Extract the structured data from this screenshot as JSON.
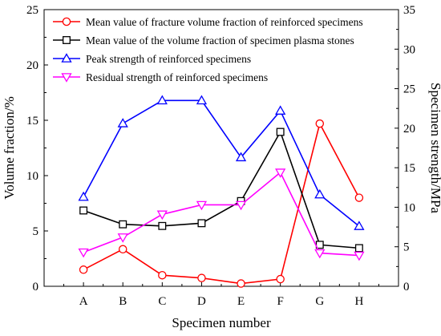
{
  "chart_data": {
    "type": "line",
    "categories": [
      "A",
      "B",
      "C",
      "D",
      "E",
      "F",
      "G",
      "H"
    ],
    "xlabel": "Specimen number",
    "ylabel_left": "Volume fraction/%",
    "ylabel_right": "Specimen strength/MPa",
    "ylim_left": [
      0,
      25
    ],
    "ylim_right": [
      0,
      35
    ],
    "yticks_left": [
      "0",
      "5",
      "10",
      "15",
      "20",
      "25"
    ],
    "yticks_right": [
      "0",
      "5",
      "10",
      "15",
      "20",
      "25",
      "30",
      "35"
    ],
    "grid": false,
    "legend_placement": "top-right",
    "series": [
      {
        "name": "Mean value of fracture volume fraction of reinforced specimens",
        "axis": "left",
        "marker": "circle",
        "color": "#ff0000",
        "values": [
          1.5,
          3.35,
          1.0,
          0.75,
          0.25,
          0.65,
          14.7,
          8.0
        ]
      },
      {
        "name": "Mean value of the volume fraction of specimen plasma stones",
        "axis": "left",
        "marker": "square",
        "color": "#000000",
        "values": [
          6.85,
          5.6,
          5.45,
          5.7,
          7.7,
          13.95,
          3.75,
          3.45
        ]
      },
      {
        "name": "Peak strength of reinforced specimens",
        "axis": "right",
        "marker": "triangle-up",
        "color": "#0000ff",
        "values": [
          11.3,
          20.6,
          23.5,
          23.5,
          16.3,
          22.2,
          11.6,
          7.6
        ]
      },
      {
        "name": "Residual strength of reinforced specimens",
        "axis": "right",
        "marker": "triangle-down",
        "color": "#ff00ff",
        "values": [
          4.3,
          6.2,
          9.1,
          10.3,
          10.3,
          14.4,
          4.2,
          3.9
        ]
      }
    ]
  }
}
